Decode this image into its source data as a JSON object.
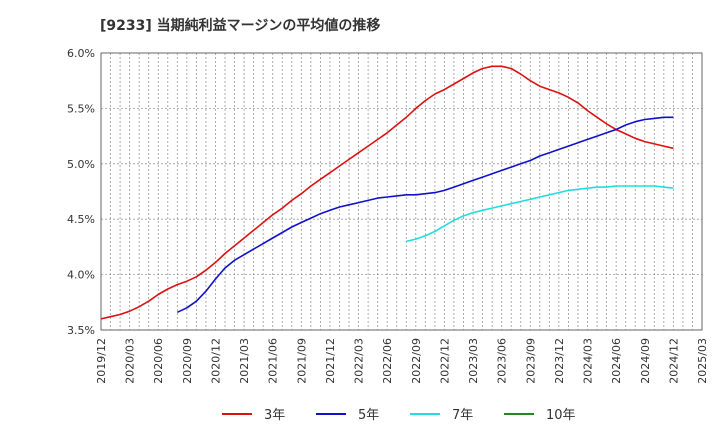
{
  "chart_data": {
    "type": "line",
    "title": "[9233]  当期純利益マージンの平均値の推移",
    "xlabel": "",
    "ylabel": "",
    "ylim": [
      3.5,
      6.0
    ],
    "y_ticks": [
      "3.5%",
      "4.0%",
      "4.5%",
      "5.0%",
      "5.5%",
      "6.0%"
    ],
    "y_tick_values": [
      3.5,
      4.0,
      4.5,
      5.0,
      5.5,
      6.0
    ],
    "x_ticks": [
      "2019/12",
      "2020/03",
      "2020/06",
      "2020/09",
      "2020/12",
      "2021/03",
      "2021/06",
      "2021/09",
      "2021/12",
      "2022/03",
      "2022/06",
      "2022/09",
      "2022/12",
      "2023/03",
      "2023/06",
      "2023/09",
      "2023/12",
      "2024/03",
      "2024/06",
      "2024/09",
      "2024/12",
      "2025/03"
    ],
    "grid": true,
    "legend_position": "bottom",
    "series": [
      {
        "name": "3年",
        "color": "#dd1111",
        "x": [
          "2019/12",
          "2020/01",
          "2020/02",
          "2020/03",
          "2020/04",
          "2020/05",
          "2020/06",
          "2020/07",
          "2020/08",
          "2020/09",
          "2020/10",
          "2020/11",
          "2020/12",
          "2021/01",
          "2021/02",
          "2021/03",
          "2021/04",
          "2021/05",
          "2021/06",
          "2021/07",
          "2021/08",
          "2021/09",
          "2021/10",
          "2021/11",
          "2021/12",
          "2022/01",
          "2022/02",
          "2022/03",
          "2022/04",
          "2022/05",
          "2022/06",
          "2022/07",
          "2022/08",
          "2022/09",
          "2022/10",
          "2022/11",
          "2022/12",
          "2023/01",
          "2023/02",
          "2023/03",
          "2023/04",
          "2023/05",
          "2023/06",
          "2023/07",
          "2023/08",
          "2023/09",
          "2023/10",
          "2023/11",
          "2023/12",
          "2024/01",
          "2024/02",
          "2024/03",
          "2024/04",
          "2024/05",
          "2024/06",
          "2024/07",
          "2024/08",
          "2024/09",
          "2024/10",
          "2024/11",
          "2024/12"
        ],
        "values": [
          3.6,
          3.62,
          3.64,
          3.67,
          3.71,
          3.76,
          3.82,
          3.87,
          3.91,
          3.94,
          3.98,
          4.04,
          4.11,
          4.19,
          4.26,
          4.33,
          4.4,
          4.47,
          4.54,
          4.6,
          4.67,
          4.73,
          4.8,
          4.86,
          4.92,
          4.98,
          5.04,
          5.1,
          5.16,
          5.22,
          5.28,
          5.35,
          5.42,
          5.5,
          5.57,
          5.63,
          5.67,
          5.72,
          5.77,
          5.82,
          5.86,
          5.88,
          5.88,
          5.86,
          5.81,
          5.75,
          5.7,
          5.67,
          5.64,
          5.6,
          5.55,
          5.48,
          5.42,
          5.36,
          5.31,
          5.27,
          5.23,
          5.2,
          5.18,
          5.16,
          5.14
        ]
      },
      {
        "name": "5年",
        "color": "#1111cc",
        "x": [
          "2020/08",
          "2020/09",
          "2020/10",
          "2020/11",
          "2020/12",
          "2021/01",
          "2021/02",
          "2021/03",
          "2021/04",
          "2021/05",
          "2021/06",
          "2021/07",
          "2021/08",
          "2021/09",
          "2021/10",
          "2021/11",
          "2021/12",
          "2022/01",
          "2022/02",
          "2022/03",
          "2022/04",
          "2022/05",
          "2022/06",
          "2022/07",
          "2022/08",
          "2022/09",
          "2022/10",
          "2022/11",
          "2022/12",
          "2023/01",
          "2023/02",
          "2023/03",
          "2023/04",
          "2023/05",
          "2023/06",
          "2023/07",
          "2023/08",
          "2023/09",
          "2023/10",
          "2023/11",
          "2023/12",
          "2024/01",
          "2024/02",
          "2024/03",
          "2024/04",
          "2024/05",
          "2024/06",
          "2024/07",
          "2024/08",
          "2024/09",
          "2024/10",
          "2024/11",
          "2024/12"
        ],
        "values": [
          3.66,
          3.7,
          3.76,
          3.85,
          3.96,
          4.06,
          4.13,
          4.18,
          4.23,
          4.28,
          4.33,
          4.38,
          4.43,
          4.47,
          4.51,
          4.55,
          4.58,
          4.61,
          4.63,
          4.65,
          4.67,
          4.69,
          4.7,
          4.71,
          4.72,
          4.72,
          4.73,
          4.74,
          4.76,
          4.79,
          4.82,
          4.85,
          4.88,
          4.91,
          4.94,
          4.97,
          5.0,
          5.03,
          5.07,
          5.1,
          5.13,
          5.16,
          5.19,
          5.22,
          5.25,
          5.28,
          5.31,
          5.35,
          5.38,
          5.4,
          5.41,
          5.42,
          5.42
        ]
      },
      {
        "name": "7年",
        "color": "#22dddd",
        "x": [
          "2022/08",
          "2022/09",
          "2022/10",
          "2022/11",
          "2022/12",
          "2023/01",
          "2023/02",
          "2023/03",
          "2023/04",
          "2023/05",
          "2023/06",
          "2023/07",
          "2023/08",
          "2023/09",
          "2023/10",
          "2023/11",
          "2023/12",
          "2024/01",
          "2024/02",
          "2024/03",
          "2024/04",
          "2024/05",
          "2024/06",
          "2024/07",
          "2024/08",
          "2024/09",
          "2024/10",
          "2024/11",
          "2024/12"
        ],
        "values": [
          4.3,
          4.32,
          4.35,
          4.39,
          4.44,
          4.49,
          4.53,
          4.56,
          4.58,
          4.6,
          4.62,
          4.64,
          4.66,
          4.68,
          4.7,
          4.72,
          4.74,
          4.76,
          4.77,
          4.78,
          4.79,
          4.79,
          4.8,
          4.8,
          4.8,
          4.8,
          4.8,
          4.79,
          4.78
        ]
      },
      {
        "name": "10年",
        "color": "#228822",
        "x": [],
        "values": []
      }
    ]
  }
}
